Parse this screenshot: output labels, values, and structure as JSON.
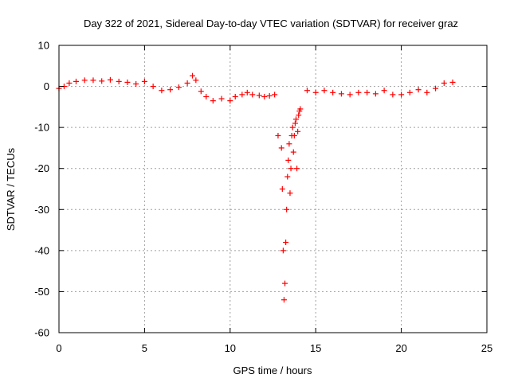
{
  "chart_data": {
    "type": "scatter",
    "title": "Day 322 of 2021, Sidereal Day-to-day VTEC variation (SDTVAR) for receiver graz",
    "xlabel": "GPS time / hours",
    "ylabel": "SDTVAR / TECUs",
    "xlim": [
      0,
      25
    ],
    "ylim": [
      -60,
      10
    ],
    "xticks": [
      0,
      5,
      10,
      15,
      20,
      25
    ],
    "yticks": [
      10,
      0,
      -10,
      -20,
      -30,
      -40,
      -50,
      -60
    ],
    "xtick_labels": [
      "0",
      "5",
      "10",
      "15",
      "20",
      "25"
    ],
    "ytick_labels": [
      "10",
      "0",
      "-10",
      "-20",
      "-30",
      "-40",
      "-50",
      "-60"
    ],
    "grid": true,
    "marker": "plus",
    "color": "#ff0000",
    "series": [
      {
        "name": "graz",
        "x": [
          0.0,
          0.3,
          0.6,
          1.0,
          1.5,
          2.0,
          2.5,
          3.0,
          3.5,
          4.0,
          4.5,
          5.0,
          5.5,
          6.0,
          6.5,
          7.0,
          7.5,
          7.8,
          8.0,
          8.3,
          8.6,
          9.0,
          9.5,
          10.0,
          10.3,
          10.7,
          11.0,
          11.3,
          11.7,
          12.0,
          12.3,
          12.6,
          12.8,
          13.0,
          13.05,
          13.1,
          13.15,
          13.2,
          13.25,
          13.3,
          13.35,
          13.4,
          13.45,
          13.5,
          13.55,
          13.6,
          13.65,
          13.7,
          13.75,
          13.8,
          13.85,
          13.9,
          13.95,
          14.0,
          14.05,
          14.1,
          14.5,
          15.0,
          15.5,
          16.0,
          16.5,
          17.0,
          17.5,
          18.0,
          18.5,
          19.0,
          19.5,
          20.0,
          20.5,
          21.0,
          21.5,
          22.0,
          22.5,
          23.0
        ],
        "y": [
          -0.5,
          0.0,
          0.8,
          1.2,
          1.5,
          1.5,
          1.3,
          1.6,
          1.2,
          1.0,
          0.6,
          1.2,
          0.0,
          -1.0,
          -0.8,
          -0.2,
          0.8,
          2.6,
          1.5,
          -1.2,
          -2.5,
          -3.5,
          -3.0,
          -3.5,
          -2.5,
          -2.0,
          -1.5,
          -2.0,
          -2.2,
          -2.5,
          -2.3,
          -2.0,
          -12.0,
          -15.0,
          -25.0,
          -40.0,
          -52.0,
          -48.0,
          -38.0,
          -30.0,
          -22.0,
          -18.0,
          -14.0,
          -26.0,
          -20.0,
          -12.0,
          -10.0,
          -16.0,
          -12.0,
          -9.0,
          -8.0,
          -20.0,
          -11.0,
          -7.0,
          -6.0,
          -5.5,
          -1.0,
          -1.5,
          -1.0,
          -1.5,
          -1.8,
          -2.0,
          -1.5,
          -1.5,
          -1.8,
          -1.0,
          -2.0,
          -2.0,
          -1.5,
          -0.8,
          -1.5,
          -0.5,
          0.8,
          1.0
        ]
      }
    ]
  }
}
